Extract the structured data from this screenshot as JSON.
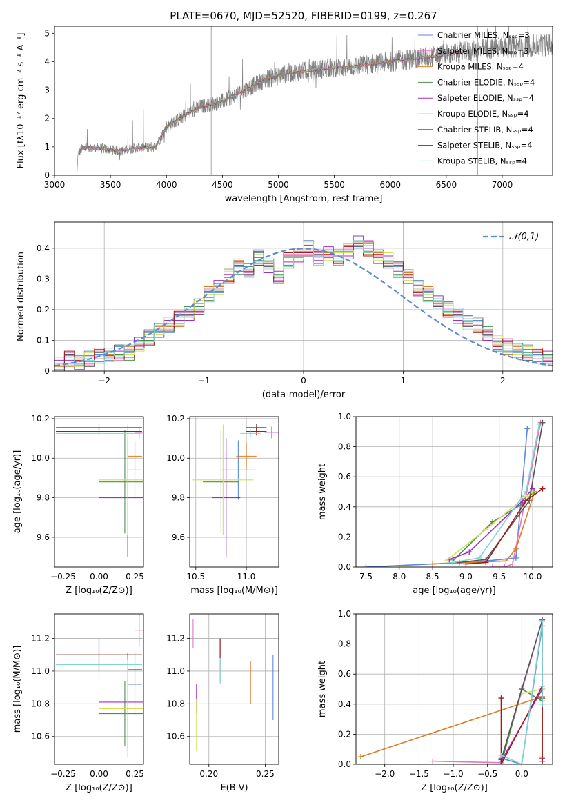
{
  "figure": {
    "title": "PLATE=0670, MJD=52520, FIBERID=0199, z=0.267"
  },
  "series_styles": [
    {
      "name": "Chabrier MILES, N_SSP=3",
      "color": "#5b8ad6"
    },
    {
      "name": "Salpeter MILES, N_SSP=3",
      "color": "#e377c2"
    },
    {
      "name": "Kroupa MILES, N_SSP=4",
      "color": "#e07b24"
    },
    {
      "name": "Chabrier ELODIE, N_SSP=4",
      "color": "#4f8f4f"
    },
    {
      "name": "Salpeter ELODIE, N_SSP=4",
      "color": "#9b30c9"
    },
    {
      "name": "Kroupa ELODIE, N_SSP=4",
      "color": "#d4e157"
    },
    {
      "name": "Chabrier STELIB, N_SSP=4",
      "color": "#555555"
    },
    {
      "name": "Salpeter STELIB, N_SSP=4",
      "color": "#9e1a1a"
    },
    {
      "name": "Kroupa STELIB, N_SSP=4",
      "color": "#80d4d4"
    }
  ],
  "chart_data": [
    {
      "id": "spectrum",
      "type": "line",
      "xlabel": "wavelength [Angstrom, rest frame]",
      "ylabel": "Flux [fλ10⁻¹⁷ erg cm⁻² s⁻¹ A⁻¹]",
      "xlim": [
        3000,
        7450
      ],
      "ylim": [
        0,
        5.25
      ],
      "xticks": [
        3000,
        3500,
        4000,
        4500,
        5000,
        5500,
        6000,
        6500,
        7000
      ],
      "yticks": [
        0,
        1,
        2,
        3,
        4,
        5
      ],
      "data_range": [
        3200,
        7450
      ],
      "envelope": [
        [
          3200,
          0.0
        ],
        [
          3210,
          0.75
        ],
        [
          3250,
          0.95
        ],
        [
          3300,
          0.98
        ],
        [
          3400,
          0.95
        ],
        [
          3500,
          0.9
        ],
        [
          3600,
          0.85
        ],
        [
          3700,
          0.95
        ],
        [
          3800,
          0.98
        ],
        [
          3900,
          1.0
        ],
        [
          4000,
          1.7
        ],
        [
          4100,
          1.95
        ],
        [
          4200,
          2.2
        ],
        [
          4300,
          2.4
        ],
        [
          4400,
          2.5
        ],
        [
          4500,
          2.6
        ],
        [
          4600,
          2.8
        ],
        [
          4700,
          3.0
        ],
        [
          4800,
          3.2
        ],
        [
          4900,
          3.4
        ],
        [
          5000,
          3.5
        ],
        [
          5100,
          3.6
        ],
        [
          5200,
          3.65
        ],
        [
          5300,
          3.7
        ],
        [
          5400,
          3.75
        ],
        [
          5500,
          3.8
        ],
        [
          5600,
          3.8
        ],
        [
          5700,
          3.85
        ],
        [
          5800,
          3.9
        ],
        [
          5900,
          3.95
        ],
        [
          6000,
          4.0
        ],
        [
          6200,
          4.1
        ],
        [
          6400,
          4.2
        ],
        [
          6600,
          4.3
        ],
        [
          6800,
          4.4
        ],
        [
          7000,
          4.5
        ],
        [
          7200,
          4.55
        ],
        [
          7450,
          4.6
        ]
      ],
      "legend": "upper-right"
    },
    {
      "id": "residual-histogram",
      "type": "histogram",
      "xlabel": "(data-model)/error",
      "ylabel": "Normed distribution",
      "xlim": [
        -2.5,
        2.5
      ],
      "ylim": [
        0,
        0.485
      ],
      "xticks": [
        -2,
        -1,
        0,
        1,
        2
      ],
      "yticks": [
        0.0,
        0.1,
        0.2,
        0.3,
        0.4
      ],
      "bin_width": 0.1,
      "bin_start": -2.5,
      "values": [
        0.02,
        0.04,
        0.03,
        0.04,
        0.05,
        0.05,
        0.06,
        0.06,
        0.09,
        0.11,
        0.13,
        0.15,
        0.17,
        0.19,
        0.21,
        0.25,
        0.27,
        0.31,
        0.34,
        0.33,
        0.37,
        0.34,
        0.31,
        0.36,
        0.38,
        0.4,
        0.37,
        0.38,
        0.37,
        0.39,
        0.42,
        0.4,
        0.37,
        0.36,
        0.33,
        0.31,
        0.27,
        0.25,
        0.22,
        0.2,
        0.18,
        0.16,
        0.15,
        0.12,
        0.09,
        0.08,
        0.07,
        0.06,
        0.05,
        0.04
      ],
      "curve": {
        "name": "𝒩(0,1)",
        "color": "#5b8ad6",
        "mean": 0,
        "sigma": 1
      },
      "legend": "upper-right"
    },
    {
      "id": "age-vs-z",
      "type": "errorbar",
      "xlabel": "Z [log₁₀(Z/Z⊙)]",
      "ylabel": "age  [log₁₀(age/yr)]",
      "xlim": [
        -0.31,
        0.31
      ],
      "ylim": [
        9.45,
        10.21
      ],
      "xticks": [
        -0.25,
        0.0,
        0.25
      ],
      "xtick_labels": [
        "−0.25",
        "0.00",
        "0.25"
      ],
      "yticks": [
        9.6,
        9.8,
        10.0,
        10.2
      ],
      "ytick_labels": [
        "9.6",
        "9.8",
        "10.0",
        "10.2"
      ],
      "points": [
        {
          "x": 0.25,
          "y": 9.94,
          "xerr": 0.05,
          "yerr": 0.15
        },
        {
          "x": 0.28,
          "y": 10.13,
          "xerr": 0.03,
          "yerr": 0.03
        },
        {
          "x": 0.25,
          "y": 10.01,
          "xerr": 0.05,
          "yerr": 0.07
        },
        {
          "x": 0.18,
          "y": 9.88,
          "xerr": 0.18,
          "yerr": 0.26
        },
        {
          "x": 0.2,
          "y": 9.8,
          "xerr": 0.2,
          "yerr": 0.3
        },
        {
          "x": 0.2,
          "y": 9.89,
          "xerr": 0.2,
          "yerr": 0.28
        },
        {
          "x": 0.0,
          "y": 10.155,
          "xerr": 0.3,
          "yerr": 0.02
        },
        {
          "x": 0.0,
          "y": 10.135,
          "xerr": 0.3,
          "yerr": 0.02
        },
        {
          "x": 0.0,
          "y": 10.125,
          "xerr": 0.3,
          "yerr": 0.02
        }
      ]
    },
    {
      "id": "age-vs-mass",
      "type": "errorbar",
      "xlabel": "mass [log₁₀(M/M⊙)]",
      "ylabel": "",
      "xlim": [
        10.44,
        11.32
      ],
      "ylim": [
        9.45,
        10.21
      ],
      "xticks": [
        10.5,
        11.0
      ],
      "xtick_labels": [
        "10.5",
        "11.0"
      ],
      "yticks": [
        9.6,
        9.8,
        10.0,
        10.2
      ],
      "ytick_labels": [
        "9.6",
        "9.8",
        "10.0",
        "10.2"
      ],
      "points": [
        {
          "x": 10.92,
          "y": 9.94,
          "xerr": 0.18,
          "yerr": 0.15
        },
        {
          "x": 11.25,
          "y": 10.13,
          "xerr": 0.07,
          "yerr": 0.03
        },
        {
          "x": 11.0,
          "y": 10.01,
          "xerr": 0.1,
          "yerr": 0.07
        },
        {
          "x": 10.75,
          "y": 9.88,
          "xerr": 0.18,
          "yerr": 0.26
        },
        {
          "x": 10.8,
          "y": 9.8,
          "xerr": 0.14,
          "yerr": 0.3
        },
        {
          "x": 10.77,
          "y": 9.89,
          "xerr": 0.3,
          "yerr": 0.28
        },
        {
          "x": 11.1,
          "y": 10.155,
          "xerr": 0.1,
          "yerr": 0.02
        },
        {
          "x": 11.1,
          "y": 10.135,
          "xerr": 0.1,
          "yerr": 0.02
        },
        {
          "x": 11.04,
          "y": 10.125,
          "xerr": 0.1,
          "yerr": 0.02
        }
      ]
    },
    {
      "id": "mass-weight-vs-age",
      "type": "line",
      "xlabel": "age  [log₁₀(age/yr)]",
      "ylabel": "mass weight",
      "xlim": [
        7.35,
        10.3
      ],
      "ylim": [
        0,
        1.0
      ],
      "xticks": [
        7.5,
        8.0,
        8.5,
        9.0,
        9.5,
        10.0
      ],
      "xtick_labels": [
        "7.5",
        "8.0",
        "8.5",
        "9.0",
        "9.5",
        "10.0"
      ],
      "yticks": [
        0.0,
        0.2,
        0.4,
        0.6,
        0.8,
        1.0
      ],
      "ytick_labels": [
        "0.0",
        "0.2",
        "0.4",
        "0.6",
        "0.8",
        "1.0"
      ],
      "series": [
        {
          "style": 0,
          "x": [
            7.5,
            8.5,
            9.3,
            9.75,
            9.92
          ],
          "y": [
            0.0,
            0.02,
            0.04,
            0.06,
            0.92
          ]
        },
        {
          "style": 1,
          "x": [
            9.4,
            9.58,
            9.7,
            10.12
          ],
          "y": [
            0.0,
            0.0,
            0.02,
            0.96
          ]
        },
        {
          "style": 2,
          "x": [
            8.5,
            9.6,
            9.75,
            10.03
          ],
          "y": [
            0.02,
            0.04,
            0.12,
            0.5
          ]
        },
        {
          "style": 3,
          "x": [
            8.8,
            9.4,
            9.85,
            10.02
          ],
          "y": [
            0.04,
            0.3,
            0.42,
            0.5
          ]
        },
        {
          "style": 4,
          "x": [
            8.75,
            9.05,
            9.85,
            10.0
          ],
          "y": [
            0.05,
            0.1,
            0.44,
            0.52
          ]
        },
        {
          "style": 5,
          "x": [
            8.7,
            9.3,
            9.9,
            10.0
          ],
          "y": [
            0.04,
            0.25,
            0.47,
            0.5
          ]
        },
        {
          "style": 6,
          "x": [
            8.9,
            9.3,
            9.95,
            10.15
          ],
          "y": [
            0.03,
            0.05,
            0.44,
            0.96
          ]
        },
        {
          "style": 7,
          "x": [
            9.0,
            9.3,
            9.9,
            10.15
          ],
          "y": [
            0.02,
            0.03,
            0.44,
            0.52
          ]
        },
        {
          "style": 8,
          "x": [
            8.8,
            9.2,
            9.9,
            10.1
          ],
          "y": [
            0.03,
            0.06,
            0.5,
            0.95
          ]
        }
      ]
    },
    {
      "id": "mass-vs-z",
      "type": "errorbar",
      "xlabel": "Z [log₁₀(Z/Z⊙)]",
      "ylabel": "mass [log₁₀(M/M⊙)]",
      "xlim": [
        -0.31,
        0.31
      ],
      "ylim": [
        10.43,
        11.35
      ],
      "xticks": [
        -0.25,
        0.0,
        0.25
      ],
      "xtick_labels": [
        "−0.25",
        "0.00",
        "0.25"
      ],
      "yticks": [
        10.6,
        10.8,
        11.0,
        11.2
      ],
      "ytick_labels": [
        "10.6",
        "10.8",
        "11.0",
        "11.2"
      ],
      "points": [
        {
          "x": 0.25,
          "y": 10.92,
          "xerr": 0.05,
          "yerr": 0.2
        },
        {
          "x": 0.28,
          "y": 11.25,
          "xerr": 0.03,
          "yerr": 0.1
        },
        {
          "x": 0.25,
          "y": 11.01,
          "xerr": 0.05,
          "yerr": 0.1
        },
        {
          "x": 0.18,
          "y": 10.74,
          "xerr": 0.18,
          "yerr": 0.2
        },
        {
          "x": 0.2,
          "y": 10.81,
          "xerr": 0.2,
          "yerr": 0.3
        },
        {
          "x": 0.2,
          "y": 10.77,
          "xerr": 0.2,
          "yerr": 0.3
        },
        {
          "x": 0.0,
          "y": 11.1,
          "xerr": 0.3,
          "yerr": 0.1
        },
        {
          "x": 0.0,
          "y": 11.1,
          "xerr": 0.3,
          "yerr": 0.1
        },
        {
          "x": 0.0,
          "y": 11.04,
          "xerr": 0.3,
          "yerr": 0.1
        }
      ]
    },
    {
      "id": "mass-vs-ebv",
      "type": "errorbar",
      "xlabel": "E(B-V)",
      "ylabel": "",
      "xlim": [
        0.183,
        0.262
      ],
      "ylim": [
        10.43,
        11.35
      ],
      "xticks": [
        0.2,
        0.25
      ],
      "xtick_labels": [
        "0.20",
        "0.25"
      ],
      "yticks": [
        10.6,
        10.8,
        11.0,
        11.2
      ],
      "ytick_labels": [
        "10.6",
        "10.8",
        "11.0",
        "11.2"
      ],
      "points": [
        {
          "x": 0.257,
          "y": 10.9,
          "xerr": 0,
          "yerr": 0.2
        },
        {
          "x": 0.186,
          "y": 11.23,
          "xerr": 0,
          "yerr": 0.09
        },
        {
          "x": 0.237,
          "y": 10.93,
          "xerr": 0,
          "yerr": 0.13
        },
        {
          "x": 0.21,
          "y": 10.99,
          "xerr": 0,
          "yerr": 0.06
        },
        {
          "x": 0.189,
          "y": 10.83,
          "xerr": 0,
          "yerr": 0.09
        },
        {
          "x": 0.189,
          "y": 10.67,
          "xerr": 0,
          "yerr": 0.16
        },
        {
          "x": 0.21,
          "y": 11.12,
          "xerr": 0,
          "yerr": 0.08
        },
        {
          "x": 0.21,
          "y": 11.14,
          "xerr": 0,
          "yerr": 0.06
        },
        {
          "x": 0.21,
          "y": 11.0,
          "xerr": 0,
          "yerr": 0.08
        }
      ]
    },
    {
      "id": "mass-weight-vs-z",
      "type": "line",
      "xlabel": "Z [log₁₀(Z/Z⊙)]",
      "ylabel": "mass weight",
      "xlim": [
        -2.42,
        0.45
      ],
      "ylim": [
        0,
        1.0
      ],
      "xticks": [
        -2.0,
        -1.5,
        -1.0,
        -0.5,
        0.0
      ],
      "xtick_labels": [
        "−2.0",
        "−1.5",
        "−1.0",
        "−0.5",
        "0.0"
      ],
      "yticks": [
        0.0,
        0.2,
        0.4,
        0.6,
        0.8,
        1.0
      ],
      "ytick_labels": [
        "0.0",
        "0.2",
        "0.4",
        "0.6",
        "0.8",
        "1.0"
      ],
      "series": [
        {
          "style": 0,
          "x": [
            -0.3,
            0.0,
            0.3,
            0.3
          ],
          "y": [
            0.04,
            0.0,
            0.92,
            0.02
          ]
        },
        {
          "style": 1,
          "x": [
            -1.3,
            -0.3,
            0.3
          ],
          "y": [
            0.02,
            0.01,
            0.96
          ]
        },
        {
          "style": 2,
          "x": [
            -2.35,
            0.3,
            0.3
          ],
          "y": [
            0.05,
            0.45,
            0.02
          ]
        },
        {
          "style": 3,
          "x": [
            -0.3,
            0.0,
            0.3
          ],
          "y": [
            0.0,
            0.5,
            0.42
          ]
        },
        {
          "style": 4,
          "x": [
            -0.3,
            0.3,
            0.3
          ],
          "y": [
            0.02,
            0.5,
            0.04
          ]
        },
        {
          "style": 5,
          "x": [
            0.0,
            0.3,
            0.3
          ],
          "y": [
            0.47,
            0.5,
            0.05
          ]
        },
        {
          "style": 6,
          "x": [
            -0.3,
            0.0,
            0.3,
            0.3
          ],
          "y": [
            0.03,
            0.5,
            0.96,
            0.44
          ]
        },
        {
          "style": 7,
          "x": [
            -0.3,
            -0.3,
            0.3,
            0.3
          ],
          "y": [
            0.44,
            0.0,
            0.52,
            0.02
          ]
        },
        {
          "style": 8,
          "x": [
            -0.3,
            0.0,
            0.3,
            0.3
          ],
          "y": [
            0.06,
            0.0,
            0.95,
            0.4
          ]
        }
      ]
    }
  ]
}
